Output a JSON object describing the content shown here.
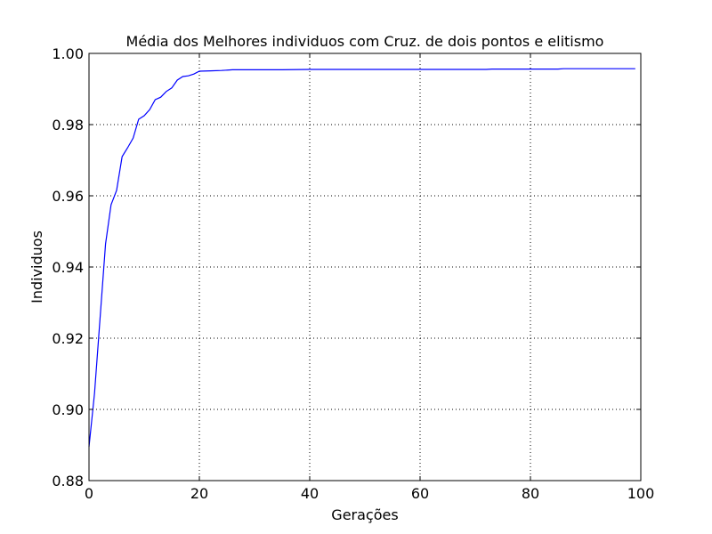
{
  "chart_data": {
    "type": "line",
    "title": "Média dos Melhores individuos com Cruz. de dois pontos e elitismo",
    "xlabel": "Gerações",
    "ylabel": "Individuos",
    "xlim": [
      0,
      100
    ],
    "ylim": [
      0.88,
      1.0
    ],
    "xticks": [
      0,
      20,
      40,
      60,
      80,
      100
    ],
    "xtick_labels": [
      "0",
      "20",
      "40",
      "60",
      "80",
      "100"
    ],
    "yticks": [
      0.88,
      0.9,
      0.92,
      0.94,
      0.96,
      0.98,
      1.0
    ],
    "ytick_labels": [
      "0.88",
      "0.90",
      "0.92",
      "0.94",
      "0.96",
      "0.98",
      "1.00"
    ],
    "grid": true,
    "color": "#0000ff",
    "series": [
      {
        "x": [
          0,
          1,
          2,
          3,
          4,
          5,
          6,
          7,
          8,
          9,
          10,
          11,
          12,
          13,
          14,
          15,
          16,
          17,
          18,
          19,
          20,
          22,
          24,
          26,
          30,
          35,
          40,
          45,
          50,
          60,
          70,
          72,
          73,
          80,
          85,
          86,
          90,
          99
        ],
        "y": [
          0.8895,
          0.9045,
          0.9255,
          0.9465,
          0.9575,
          0.9615,
          0.971,
          0.9735,
          0.9762,
          0.9815,
          0.9825,
          0.9842,
          0.987,
          0.9877,
          0.9893,
          0.9903,
          0.9925,
          0.9935,
          0.9937,
          0.9942,
          0.995,
          0.9951,
          0.9952,
          0.9954,
          0.9954,
          0.9954,
          0.9955,
          0.9955,
          0.9955,
          0.9955,
          0.9955,
          0.9955,
          0.9956,
          0.9956,
          0.9956,
          0.9957,
          0.9957,
          0.9957
        ]
      }
    ]
  }
}
